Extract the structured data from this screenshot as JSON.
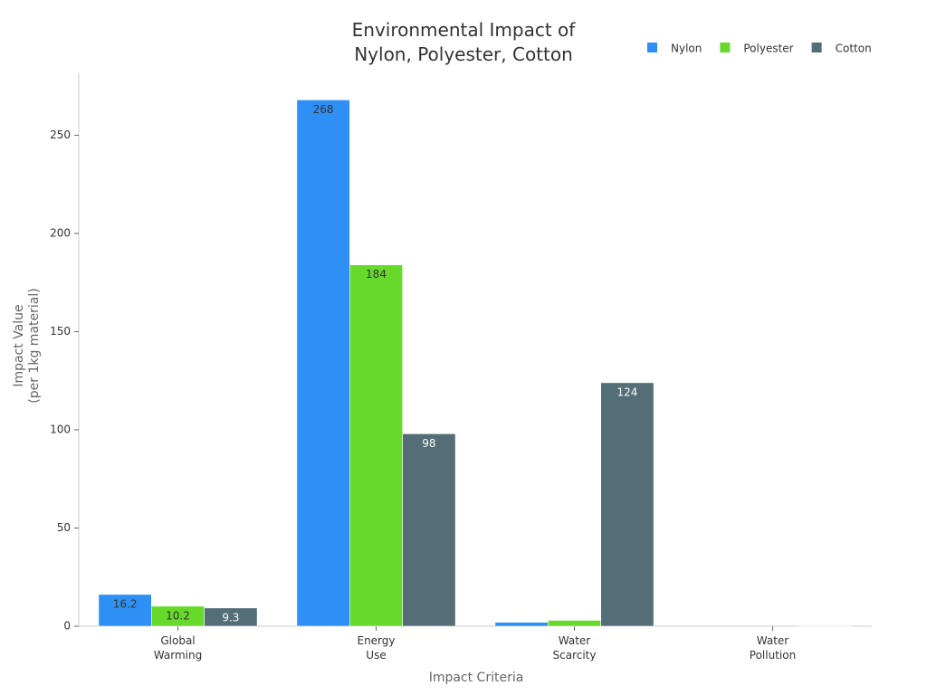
{
  "chart_data": {
    "type": "bar",
    "title": "Environmental Impact of\nNylon, Polyester, Cotton",
    "x_label": "Impact Criteria",
    "y_label": "Impact Value\n(per 1kg material)",
    "categories": [
      "Global\nWarming",
      "Energy\nUse",
      "Water\nScarcity",
      "Water\nPollution"
    ],
    "series": [
      {
        "name": "Nylon",
        "color": "#2e90f5",
        "values": [
          16.2,
          268,
          2,
          0
        ]
      },
      {
        "name": "Polyester",
        "color": "#66d92a",
        "values": [
          10.2,
          184,
          3,
          0
        ]
      },
      {
        "name": "Cotton",
        "color": "#546e78",
        "values": [
          9.3,
          98,
          124,
          0.3
        ]
      }
    ],
    "ylim": [
      0,
      282
    ],
    "yticks": [
      0,
      50,
      100,
      150,
      200,
      250
    ],
    "legend": "top-right",
    "grid": false
  }
}
